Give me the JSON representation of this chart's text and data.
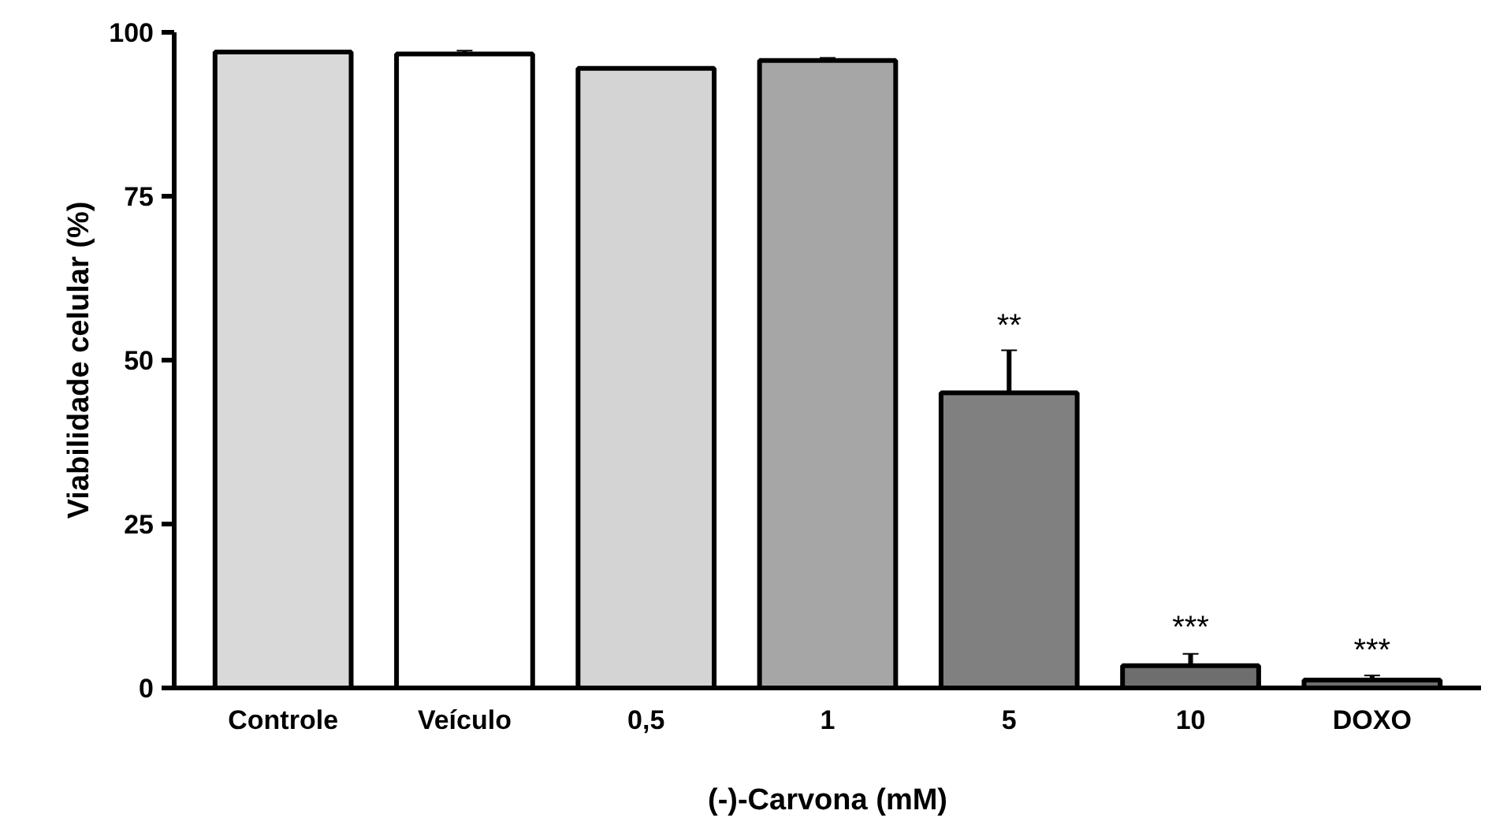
{
  "chart_data": {
    "type": "bar",
    "ylabel": "Viabilidade celular (%)",
    "xlabel": "(-)-Carvona (mM)",
    "categories": [
      "Controle",
      "Veículo",
      "0,5",
      "1",
      "5",
      "10",
      "DOXO"
    ],
    "values": [
      97,
      96.7,
      94.5,
      95.7,
      45,
      3.4,
      1.2
    ],
    "errors": [
      0.2,
      0.5,
      0.1,
      0.4,
      6.5,
      1.8,
      0.7
    ],
    "colors": [
      "#d9d9d9",
      "#ffffff",
      "#d4d4d4",
      "#a6a6a6",
      "#808080",
      "#6e6e6e",
      "#6e6e6e"
    ],
    "ylim": [
      0,
      100
    ],
    "yticks": [
      0,
      25,
      50,
      75,
      100
    ],
    "grid": false,
    "annotations": [
      {
        "text": "**",
        "x": "5",
        "y": 52
      },
      {
        "text": "***",
        "x": "10",
        "y": 6
      },
      {
        "text": "***",
        "x": "DOXO",
        "y": 2.5
      }
    ]
  }
}
